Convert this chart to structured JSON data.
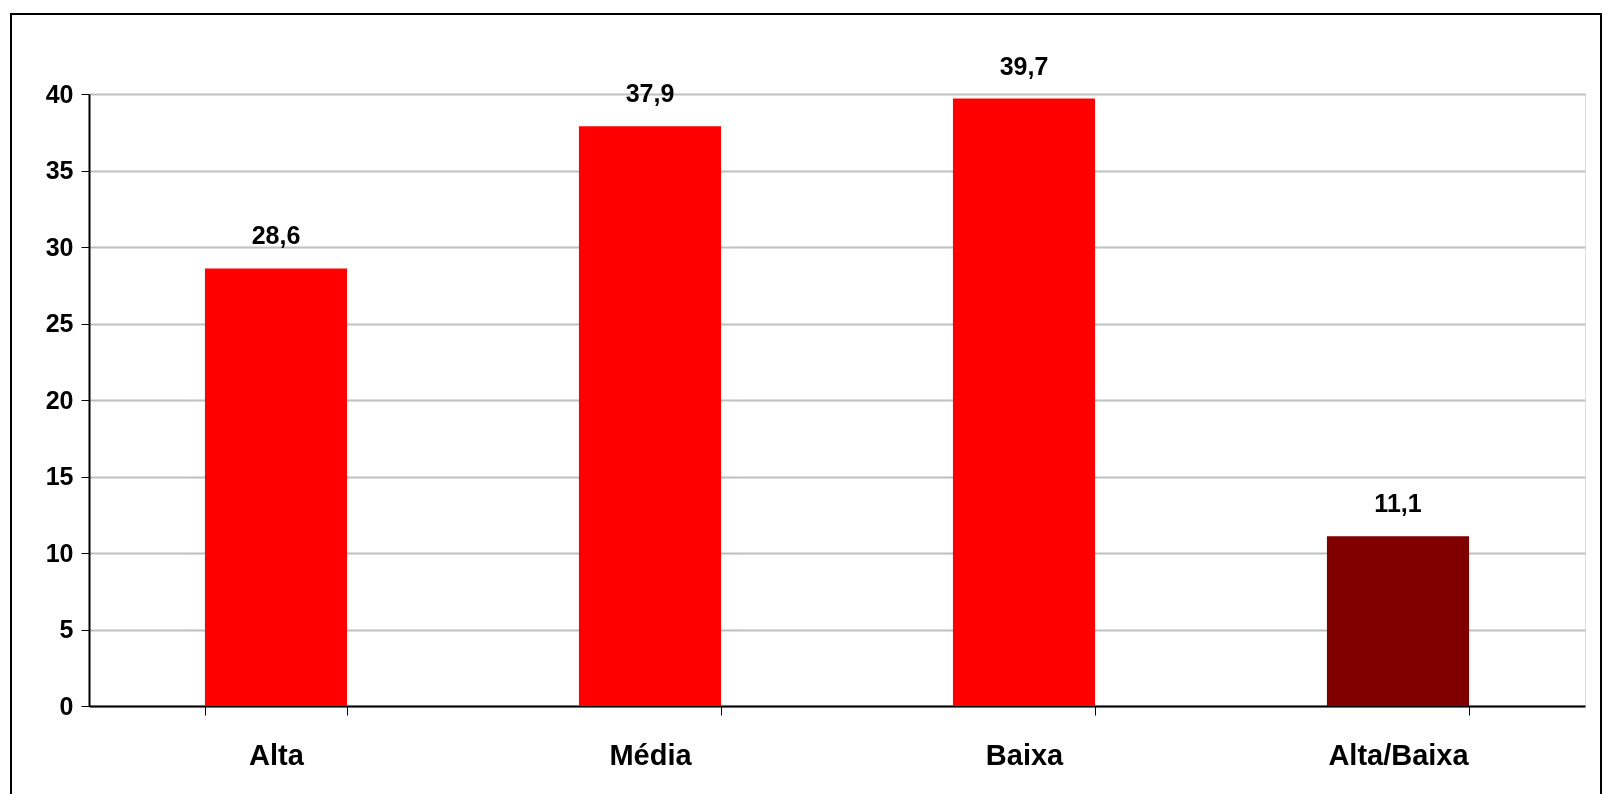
{
  "chart_data": {
    "type": "bar",
    "categories": [
      "Alta",
      "Média",
      "Baixa",
      "Alta/Baixa"
    ],
    "values": [
      28.6,
      37.9,
      39.7,
      11.1
    ],
    "colors": [
      "#ff0000",
      "#ff0000",
      "#ff0000",
      "#800000"
    ],
    "value_labels": [
      "28,6",
      "37,9",
      "39,7",
      "11,1"
    ],
    "ylim": [
      0,
      40
    ],
    "yticks": [
      0,
      5,
      10,
      15,
      20,
      25,
      30,
      35,
      40
    ],
    "grid": "y"
  }
}
